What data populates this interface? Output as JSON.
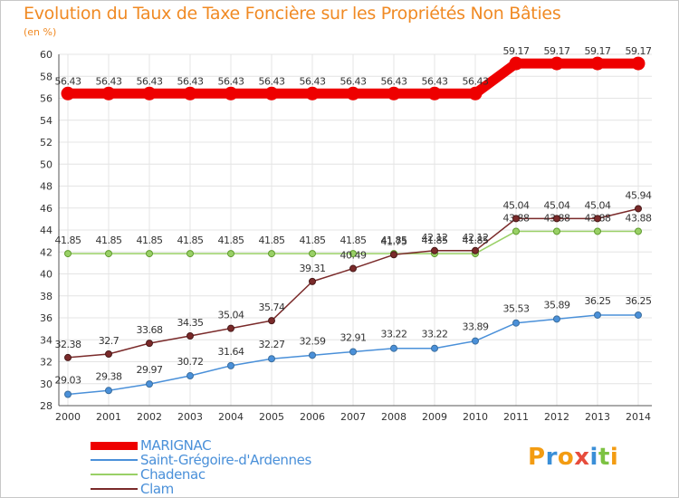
{
  "header": {
    "title": "Evolution du Taux de Taxe Foncière sur les Propriétés Non Bâties",
    "unit": "(en %)"
  },
  "logo": {
    "text": "Proxiti",
    "letters": [
      {
        "ch": "P",
        "color": "#f39c12"
      },
      {
        "ch": "r",
        "color": "#3a8fd8"
      },
      {
        "ch": "o",
        "color": "#f39c12"
      },
      {
        "ch": "x",
        "color": "#e74c3c"
      },
      {
        "ch": "i",
        "color": "#3a8fd8"
      },
      {
        "ch": "t",
        "color": "#7dc242"
      },
      {
        "ch": "i",
        "color": "#f39c12"
      }
    ]
  },
  "chart_data": {
    "type": "line",
    "title": "Evolution du Taux de Taxe Foncière sur les Propriétés Non Bâties",
    "ylabel": "(en %)",
    "xlabel": "",
    "x": [
      2000,
      2001,
      2002,
      2003,
      2004,
      2005,
      2006,
      2007,
      2008,
      2009,
      2010,
      2011,
      2012,
      2013,
      2014
    ],
    "ylim": [
      28,
      60
    ],
    "yticks": [
      28,
      30,
      32,
      34,
      36,
      38,
      40,
      42,
      44,
      46,
      48,
      50,
      52,
      54,
      56,
      58,
      60
    ],
    "grid": true,
    "legend_position": "bottom-left",
    "series": [
      {
        "name": "MARIGNAC",
        "color": "#ee0000",
        "values": [
          56.43,
          56.43,
          56.43,
          56.43,
          56.43,
          56.43,
          56.43,
          56.43,
          56.43,
          56.43,
          56.43,
          59.17,
          59.17,
          59.17,
          59.17
        ],
        "labels": [
          "56.43",
          "56.43",
          "56.43",
          "56.43",
          "56.43",
          "56.43",
          "56.43",
          "56.43",
          "56.43",
          "56.43",
          "56.43",
          "59.17",
          "59.17",
          "59.17",
          "59.17"
        ]
      },
      {
        "name": "Saint-Grégoire-d'Ardennes",
        "color": "#4a90d9",
        "values": [
          29.03,
          29.38,
          29.97,
          30.72,
          31.64,
          32.27,
          32.59,
          32.91,
          33.22,
          33.22,
          33.89,
          35.53,
          35.89,
          36.25,
          36.25
        ],
        "labels": [
          "29.03",
          "29.38",
          "29.97",
          "30.72",
          "31.64",
          "32.27",
          "32.59",
          "32.91",
          "33.22",
          "33.22",
          "33.89",
          "35.53",
          "35.89",
          "36.25",
          "36.25"
        ]
      },
      {
        "name": "Chadenac",
        "color": "#99d066",
        "values": [
          41.85,
          41.85,
          41.85,
          41.85,
          41.85,
          41.85,
          41.85,
          41.85,
          41.85,
          41.85,
          41.85,
          43.88,
          43.88,
          43.88,
          43.88
        ],
        "labels": [
          "41.85",
          "41.85",
          "41.85",
          "41.85",
          "41.85",
          "41.85",
          "41.85",
          "41.85",
          "41.85",
          "41.85",
          "41.85",
          "43.88",
          "43.88",
          "43.88",
          "43.88"
        ]
      },
      {
        "name": "Clam",
        "color": "#7a2a2a",
        "values": [
          32.38,
          32.7,
          33.68,
          34.35,
          35.04,
          35.74,
          39.31,
          40.49,
          41.75,
          42.12,
          42.12,
          45.04,
          45.04,
          45.04,
          45.94
        ],
        "labels": [
          "32.38",
          "32.7",
          "33.68",
          "34.35",
          "35.04",
          "35.74",
          "39.31",
          "40.49",
          "41.75",
          "42.12",
          "42.12",
          "45.04",
          "45.04",
          "45.04",
          "45.94"
        ]
      }
    ]
  }
}
